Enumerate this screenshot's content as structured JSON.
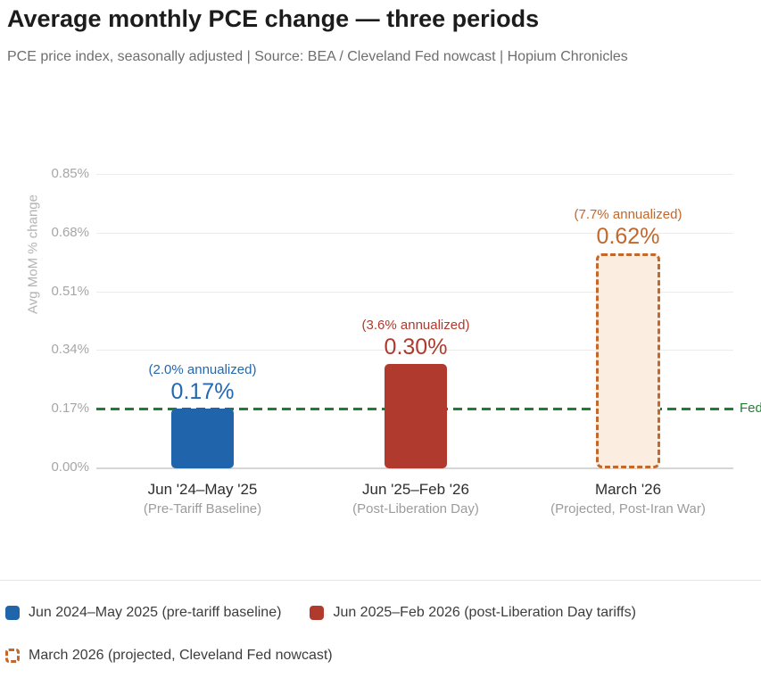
{
  "header": {
    "title": "Average monthly PCE change — three periods",
    "subtitle": "PCE price index, seasonally adjusted  |  Source: BEA / Cleveland Fed nowcast  |  Hopium Chronicles"
  },
  "chart_data": {
    "type": "bar",
    "title": "Average monthly PCE change — three periods",
    "xlabel": "",
    "ylabel": "Avg MoM % change",
    "ylim": [
      0,
      0.85
    ],
    "grid": "horizontal",
    "yticks": [
      {
        "value": 0.0,
        "label": "0.00%"
      },
      {
        "value": 0.17,
        "label": "0.17%"
      },
      {
        "value": 0.34,
        "label": "0.34%"
      },
      {
        "value": 0.51,
        "label": "0.51%"
      },
      {
        "value": 0.68,
        "label": "0.68%"
      },
      {
        "value": 0.85,
        "label": "0.85%"
      }
    ],
    "categories": [
      "Jun '24–May '25",
      "Jun '25–Feb '26",
      "March '26"
    ],
    "category_subtitles": [
      "(Pre-Tariff Baseline)",
      "(Post-Liberation Day)",
      "(Projected, Post-Iran War)"
    ],
    "values": [
      0.17,
      0.3,
      0.62
    ],
    "value_labels": [
      "0.17%",
      "0.30%",
      "0.62%"
    ],
    "annualized_labels": [
      "(2.0% annualized)",
      "(3.6% annualized)",
      "(7.7% annualized)"
    ],
    "bar_fill_colors": [
      "#2065ab",
      "#b03a2e",
      "#fcede1"
    ],
    "bar_styles": [
      "solid",
      "solid",
      "dashed"
    ],
    "bar_border_color": "#c2682c",
    "label_colors": [
      "#2368b0",
      "#b03a2e",
      "#c2682c"
    ],
    "reference_line": {
      "value": 0.17,
      "label": "Fed",
      "color": "#1e7e34",
      "style": "dashed"
    },
    "legend_position": "bottom"
  },
  "legend": {
    "items": [
      {
        "label": "Jun 2024–May 2025 (pre-tariff baseline)",
        "swatch": "solid",
        "color": "#2065ab"
      },
      {
        "label": "Jun 2025–Feb 2026 (post-Liberation Day tariffs)",
        "swatch": "solid",
        "color": "#b03a2e"
      },
      {
        "label": "March 2026 (projected, Cleveland Fed nowcast)",
        "swatch": "dashed",
        "color": "#c2682c"
      }
    ]
  },
  "colors": {
    "title": "#1c1c1c",
    "subtitle": "#6e6e6e",
    "gridline": "#ececec",
    "axis_tick": "#a6a6a6",
    "reference_green": "#1e7e34",
    "blue": "#2065ab",
    "red": "#b03a2e",
    "orange": "#c2682c",
    "orange_fill": "#fcede1"
  }
}
